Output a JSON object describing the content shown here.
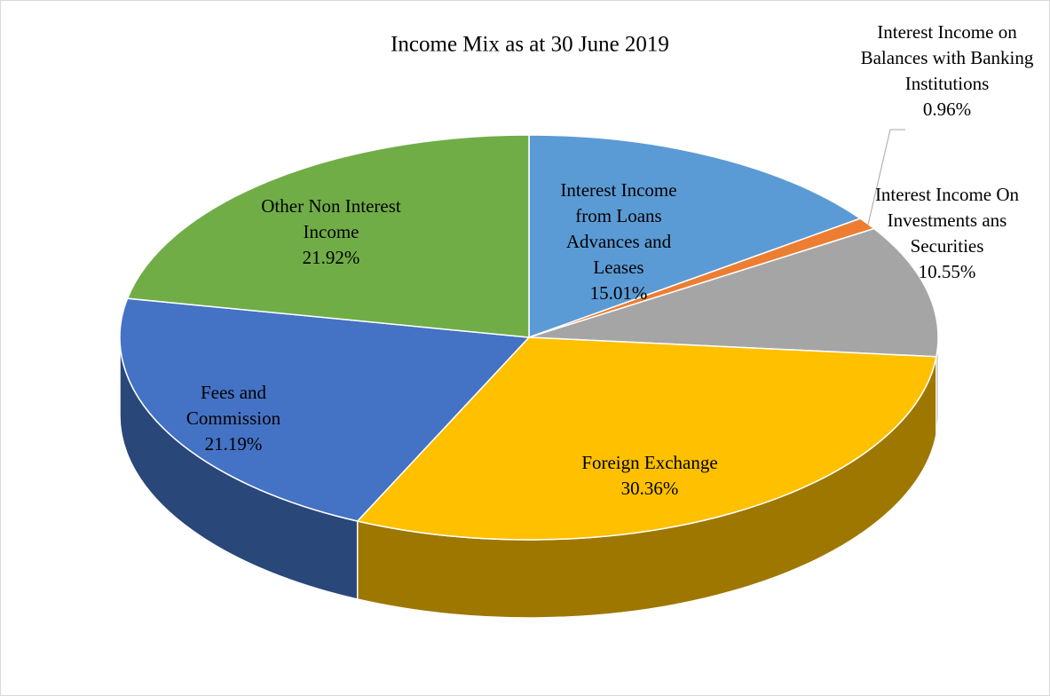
{
  "chart_data": {
    "type": "pie",
    "title": "Income Mix as at 30 June 2019",
    "categories": [
      "Interest Income from Loans Advances and Leases",
      "Interest Income on Balances with Banking Institutions",
      "Interest Income On Investments ans Securities",
      "Foreign Exchange",
      "Fees and Commission",
      "Other Non Interest Income"
    ],
    "values": [
      15.01,
      0.96,
      10.55,
      30.36,
      21.19,
      21.92
    ],
    "value_labels": [
      "15.01%",
      "0.96%",
      "10.55%",
      "30.36%",
      "21.19%",
      "21.92%"
    ],
    "colors": [
      "#5b9bd5",
      "#ed7d31",
      "#a5a5a5",
      "#ffc000",
      "#4472c4",
      "#70ad47"
    ],
    "three_d": true
  }
}
